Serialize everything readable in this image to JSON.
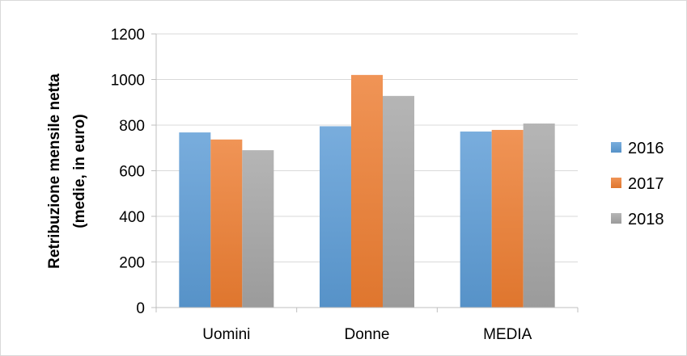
{
  "chart_data": {
    "type": "bar",
    "title": "",
    "xlabel": "",
    "ylabel_lines": [
      "Retribuzione mensile netta",
      "(medie, in euro)"
    ],
    "categories": [
      "Uomini",
      "Donne",
      "MEDIA"
    ],
    "series": [
      {
        "name": "2016",
        "values": [
          768,
          795,
          772
        ],
        "color": "#5b9bd5"
      },
      {
        "name": "2017",
        "values": [
          737,
          1020,
          779
        ],
        "color": "#ed7d31"
      },
      {
        "name": "2018",
        "values": [
          690,
          928,
          807
        ],
        "color": "#a5a5a5"
      }
    ],
    "ylim": [
      0,
      1200
    ],
    "yticks": [
      0,
      200,
      400,
      600,
      800,
      1000,
      1200
    ],
    "grid": true,
    "legend_position": "right"
  }
}
